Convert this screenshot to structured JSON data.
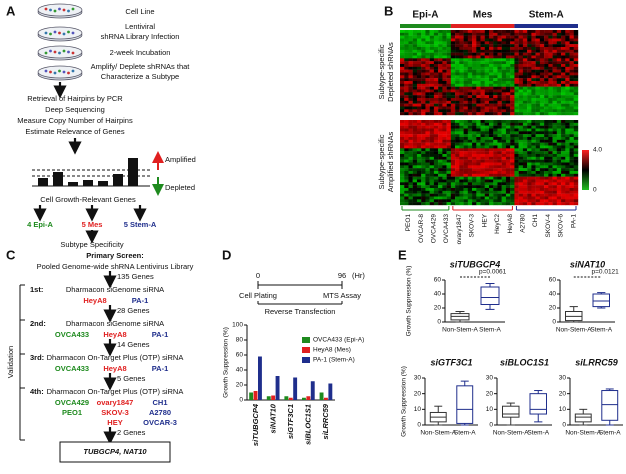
{
  "panel_labels": [
    "A",
    "B",
    "C",
    "D",
    "E"
  ],
  "a": {
    "cell_line": "Cell Line",
    "infection": [
      "Lentiviral",
      "shRNA Library Infection"
    ],
    "incubation": "2-week Incubation",
    "amplify": [
      "Amplify/ Deplete shRNAs that",
      "Characterize a Subtype"
    ],
    "analysis": [
      "Retrieval of Hairpins by PCR",
      "Deep Sequencing",
      "Measure Copy Number of Hairpins",
      "Estimate Relevance of Genes"
    ],
    "amplified": "Amplified",
    "depleted": "Depleted",
    "genes": "Cell Growth-Relevant Genes",
    "subtypes": [
      "4 Epi-A",
      "5 Mes",
      "5 Stem-A"
    ],
    "specificity": "Subtype Specificity"
  },
  "b": {
    "subtypes": [
      "Epi-A",
      "Mes",
      "Stem-A"
    ],
    "depleted": [
      "Subtype-specific",
      "Depleted shRNAs"
    ],
    "amplified": [
      "Subtype-specific",
      "Amplified shRNAs"
    ],
    "scale": [
      "4.0",
      "0"
    ],
    "cell_lines": [
      [
        "PEO1",
        "OVCAR-8",
        "OVCA429",
        "OVCA433"
      ],
      [
        "ovary1847",
        "SKOV-3",
        "HEY",
        "HeyC2",
        "HeyA8"
      ],
      [
        "A2780",
        "CH1",
        "SKOV-4",
        "SKOV-6",
        "PA-1"
      ]
    ]
  },
  "c": {
    "primary": "Primary Screen:",
    "library": "Pooled Genome-wide shRNA Lentivirus Library",
    "validation": "Validation",
    "counts": [
      "135 Genes",
      "28 Genes",
      "14 Genes",
      "5 Genes",
      "2 Genes"
    ],
    "rounds": [
      {
        "label": "1st:",
        "method": "Dharmacon siGenome siRNA",
        "lines": [
          [],
          [
            "HeyA8"
          ],
          [
            "PA-1"
          ]
        ]
      },
      {
        "label": "2nd:",
        "method": "Dharmacon siGenome siRNA",
        "lines": [
          [
            "OVCA433"
          ],
          [
            "HeyA8"
          ],
          [
            "PA-1"
          ]
        ]
      },
      {
        "label": "3rd:",
        "method": "Dharmacon On-Target Plus (OTP) siRNA",
        "lines": [
          [
            "OVCA433"
          ],
          [
            "HeyA8"
          ],
          [
            "PA-1"
          ]
        ]
      },
      {
        "label": "4th:",
        "method": "Dharmacon On-Target Plus (OTP) siRNA",
        "lines": [
          [
            "OVCA429",
            "PEO1"
          ],
          [
            "ovary1847",
            "SKOV-3",
            "HEY"
          ],
          [
            "CH1",
            "A2780",
            "OVCAR-3"
          ]
        ]
      }
    ],
    "result": "TUBGCP4, NAT10"
  },
  "d": {
    "timeline": {
      "start": "0",
      "end": "96",
      "unit": "(Hr)",
      "events": [
        "Cell Plating",
        "MTS Assay"
      ],
      "span": "Reverse Transfection"
    }
  },
  "chart_data": [
    {
      "type": "bar",
      "ylabel": "Growth Suppression (%)",
      "categories": [
        "siTUBGCP4",
        "siNAT10",
        "siGTF3C1",
        "siBLOC1S1",
        "siLRRC59"
      ],
      "series": [
        {
          "name": "OVCA433 (Epi-A)",
          "color": "#1e8a1e",
          "values": [
            10,
            5,
            5,
            3,
            10
          ]
        },
        {
          "name": "HeyA8 (Mes)",
          "color": "#e02020",
          "values": [
            12,
            6,
            3,
            5,
            3
          ]
        },
        {
          "name": "PA-1 (Stem-A)",
          "color": "#1f2e8c",
          "values": [
            58,
            32,
            30,
            25,
            22
          ]
        }
      ],
      "ylim": [
        0,
        100
      ],
      "yticks": [
        0,
        20,
        40,
        60,
        80,
        100
      ],
      "legend": "upper right"
    },
    {
      "type": "box",
      "title": "siTUBGCP4",
      "ylabel": "Growth Suppression (%)",
      "annotation": "p=0.0061",
      "categories": [
        "Non-Stem-A",
        "Stem-A"
      ],
      "colors": [
        "#333333",
        "#1f2e8c"
      ],
      "boxes": [
        {
          "min": 0,
          "q1": 3,
          "median": 8,
          "q3": 12,
          "max": 15
        },
        {
          "min": 18,
          "q1": 25,
          "median": 35,
          "q3": 50,
          "max": 55
        }
      ],
      "ylim": [
        0,
        60
      ],
      "yticks": [
        0,
        20,
        40,
        60
      ]
    },
    {
      "type": "box",
      "title": "siNAT10",
      "annotation": "p=0.0121",
      "categories": [
        "Non-Stem-A",
        "Stem-A"
      ],
      "colors": [
        "#333333",
        "#1f2e8c"
      ],
      "boxes": [
        {
          "min": 0,
          "q1": 2,
          "median": 8,
          "q3": 15,
          "max": 22
        },
        {
          "min": 20,
          "q1": 22,
          "median": 30,
          "q3": 40,
          "max": 42
        }
      ],
      "ylim": [
        0,
        60
      ],
      "yticks": [
        0,
        20,
        40,
        60
      ]
    },
    {
      "type": "box",
      "title": "siGTF3C1",
      "ylabel": "Growth Suppression (%)",
      "categories": [
        "Non-Stem-A",
        "Stem-A"
      ],
      "colors": [
        "#333333",
        "#1f2e8c"
      ],
      "boxes": [
        {
          "min": 0,
          "q1": 2,
          "median": 5,
          "q3": 8,
          "max": 12
        },
        {
          "min": 0,
          "q1": 1,
          "median": 10,
          "q3": 25,
          "max": 28
        }
      ],
      "ylim": [
        0,
        30
      ],
      "yticks": [
        0,
        10,
        20,
        30
      ]
    },
    {
      "type": "box",
      "title": "siBLOC1S1",
      "categories": [
        "Non-Stem-A",
        "Stem-A"
      ],
      "colors": [
        "#333333",
        "#1f2e8c"
      ],
      "boxes": [
        {
          "min": 0,
          "q1": 5,
          "median": 7,
          "q3": 12,
          "max": 14
        },
        {
          "min": 2,
          "q1": 7,
          "median": 10,
          "q3": 20,
          "max": 22
        }
      ],
      "ylim": [
        0,
        30
      ],
      "yticks": [
        0,
        10,
        20,
        30
      ]
    },
    {
      "type": "box",
      "title": "siLRRC59",
      "categories": [
        "Non-Stem-A",
        "Stem-A"
      ],
      "colors": [
        "#333333",
        "#1f2e8c"
      ],
      "boxes": [
        {
          "min": 0,
          "q1": 2,
          "median": 5,
          "q3": 7,
          "max": 10
        },
        {
          "min": 0,
          "q1": 3,
          "median": 13,
          "q3": 22,
          "max": 23
        }
      ],
      "ylim": [
        0,
        30
      ],
      "yticks": [
        0,
        10,
        20,
        30
      ]
    }
  ]
}
